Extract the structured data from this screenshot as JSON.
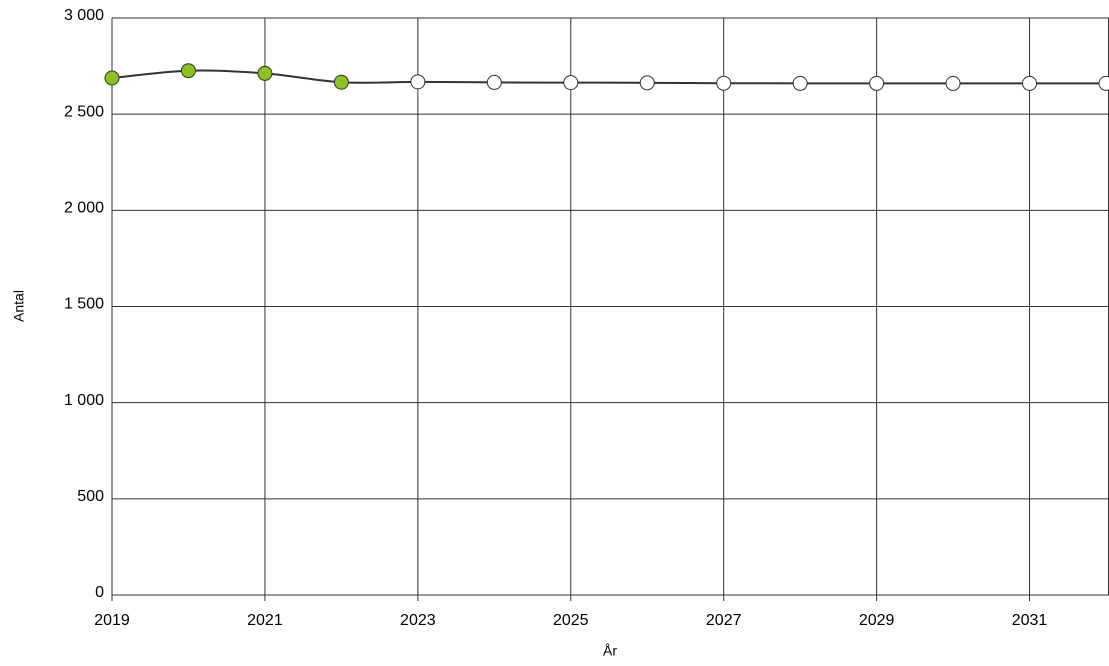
{
  "chart_data": {
    "type": "line",
    "x_label": "År",
    "y_label": "Antal",
    "x": [
      2019,
      2020,
      2021,
      2022,
      2023,
      2024,
      2025,
      2026,
      2027,
      2028,
      2029,
      2030,
      2031,
      2032
    ],
    "series": [
      {
        "color": "#333333",
        "values": [
          2688,
          2726,
          2712,
          2666,
          2668,
          2665,
          2664,
          2663,
          2661,
          2660,
          2660,
          2660,
          2660,
          2660
        ],
        "marker_colors": [
          "#8cc320",
          "#8cc320",
          "#8cc320",
          "#8cc320",
          "#ffffff",
          "#ffffff",
          "#ffffff",
          "#ffffff",
          "#ffffff",
          "#ffffff",
          "#ffffff",
          "#ffffff",
          "#ffffff",
          "#ffffff"
        ]
      }
    ],
    "xlim": [
      2019,
      2032
    ],
    "xticks": [
      2019,
      2021,
      2023,
      2025,
      2027,
      2029,
      2031
    ],
    "ylim": [
      0,
      3000
    ],
    "yticks": [
      0,
      500,
      {
        "value": 1000,
        "label": "1 000"
      },
      {
        "value": 1500,
        "label": "1 500"
      },
      {
        "value": 2000,
        "label": "2 000"
      },
      {
        "value": 2500,
        "label": "2 500"
      },
      {
        "value": 3000,
        "label": "3 000"
      }
    ],
    "grid": true,
    "smooth": true
  }
}
